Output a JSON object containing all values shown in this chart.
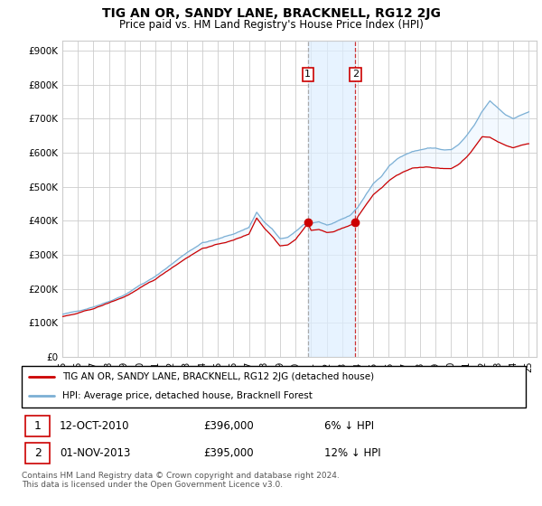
{
  "title": "TIG AN OR, SANDY LANE, BRACKNELL, RG12 2JG",
  "subtitle": "Price paid vs. HM Land Registry's House Price Index (HPI)",
  "hpi_color": "#7bafd4",
  "price_color": "#cc0000",
  "marker_color": "#cc0000",
  "shade_color": "#ddeeff",
  "legend_label_red": "TIG AN OR, SANDY LANE, BRACKNELL, RG12 2JG (detached house)",
  "legend_label_blue": "HPI: Average price, detached house, Bracknell Forest",
  "footer": "Contains HM Land Registry data © Crown copyright and database right 2024.\nThis data is licensed under the Open Government Licence v3.0.",
  "background_color": "#ffffff",
  "grid_color": "#cccccc",
  "marker1_year": 2010.79,
  "marker2_year": 2013.84,
  "marker1_val": 396000,
  "marker2_val": 395000
}
